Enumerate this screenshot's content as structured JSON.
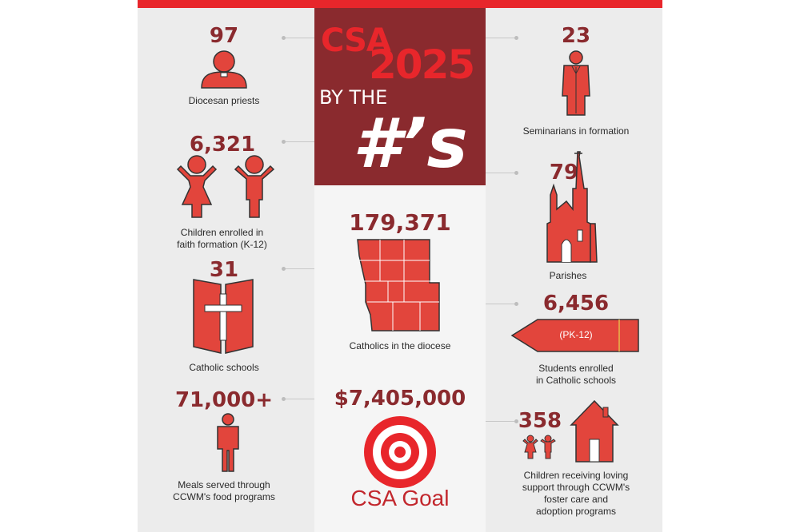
{
  "colors": {
    "accent_red": "#e8262b",
    "dark_red": "#8a2a2e",
    "icon_red": "#e2453c",
    "background": "#ececec"
  },
  "hero": {
    "line1": "CSA",
    "line2": "2025",
    "line3": "BY THE",
    "line4": "#’s"
  },
  "stats": {
    "priests": {
      "value": "97",
      "label": "Diocesan priests",
      "icon": "priest-icon"
    },
    "seminarians": {
      "value": "23",
      "label": "Seminarians in formation",
      "icon": "seminarian-icon"
    },
    "children": {
      "value": "6,321",
      "label_line1": "Children enrolled in",
      "label_line2": "faith formation (K-12)",
      "icon": "children-icon"
    },
    "parishes": {
      "value": "79",
      "label": "Parishes",
      "icon": "church-icon"
    },
    "catholics": {
      "value": "179,371",
      "label": "Catholics in the diocese",
      "icon": "diocese-map-icon"
    },
    "schools": {
      "value": "31",
      "label": "Catholic schools",
      "icon": "open-book-cross-icon"
    },
    "students": {
      "value": "6,456",
      "pencil_text": "(PK-12)",
      "label_line1": "Students enrolled",
      "label_line2": "in Catholic schools",
      "icon": "pencil-icon"
    },
    "meals": {
      "value": "71,000+",
      "label_line1": "Meals served through",
      "label_line2": "CCWM's food programs",
      "icon": "person-icon"
    },
    "goal": {
      "value": "$7,405,000",
      "label": "CSA Goal",
      "icon": "target-icon"
    },
    "foster": {
      "value": "358",
      "label_line1": "Children receiving loving",
      "label_line2": "support through CCWM's",
      "label_line3": "foster care and",
      "label_line4": "adoption programs",
      "icon": "house-icon"
    }
  }
}
